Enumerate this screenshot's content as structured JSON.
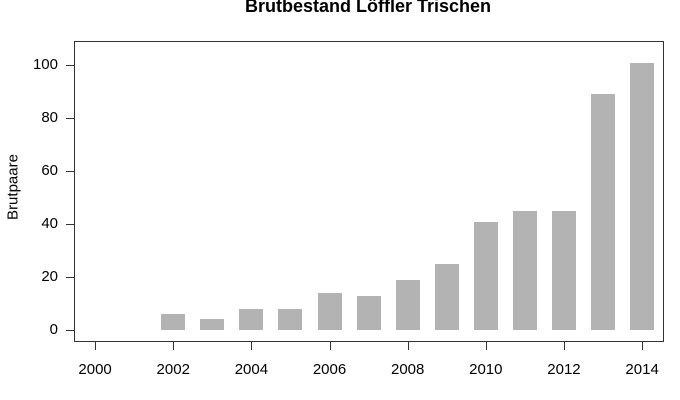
{
  "chart_data": {
    "type": "bar",
    "title": "Brutbestand Löffler Trischen",
    "xlabel": "",
    "ylabel": "Brutpaare",
    "x": [
      2002,
      2003,
      2004,
      2005,
      2006,
      2007,
      2008,
      2009,
      2010,
      2011,
      2012,
      2013,
      2014
    ],
    "values": [
      6,
      4,
      8,
      8,
      14,
      13,
      19,
      25,
      41,
      45,
      45,
      89,
      101
    ],
    "x_ticks": [
      2000,
      2002,
      2004,
      2006,
      2008,
      2010,
      2012,
      2014
    ],
    "y_ticks": [
      0,
      20,
      40,
      60,
      80,
      100
    ],
    "xlim": [
      1999.46,
      2014.56
    ],
    "ylim": [
      -4.5,
      109.2
    ],
    "grid": false,
    "legend": "none",
    "bar_color": "#b3b3b3",
    "axis_color": "#333333",
    "text_color": "#000000",
    "background": "#ffffff"
  }
}
